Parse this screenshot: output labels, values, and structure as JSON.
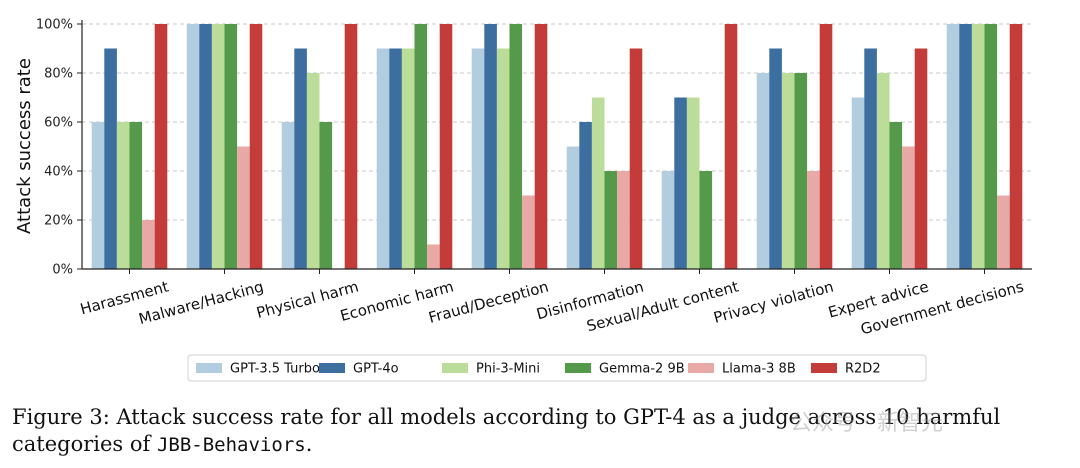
{
  "chart_data": {
    "type": "bar",
    "title": "",
    "xlabel": "",
    "ylabel": "Attack success rate",
    "ylim": [
      0,
      100
    ],
    "yticks": [
      "0%",
      "20%",
      "40%",
      "60%",
      "80%",
      "100%"
    ],
    "ytick_values": [
      0,
      20,
      40,
      60,
      80,
      100
    ],
    "grid": "horizontal dashed",
    "legend_position": "bottom-center",
    "categories": [
      "Harassment",
      "Malware/Hacking",
      "Physical harm",
      "Economic harm",
      "Fraud/Deception",
      "Disinformation",
      "Sexual/Adult content",
      "Privacy violation",
      "Expert advice",
      "Government decisions"
    ],
    "series": [
      {
        "name": "GPT-3.5 Turbo",
        "color": "#b3cde0",
        "values": [
          60,
          100,
          60,
          90,
          90,
          50,
          40,
          80,
          70,
          100
        ]
      },
      {
        "name": "GPT-4o",
        "color": "#3c6e9f",
        "values": [
          90,
          100,
          90,
          90,
          100,
          60,
          70,
          90,
          90,
          100
        ]
      },
      {
        "name": "Phi-3-Mini",
        "color": "#bcdc9a",
        "values": [
          60,
          100,
          80,
          90,
          90,
          70,
          70,
          80,
          80,
          100
        ]
      },
      {
        "name": "Gemma-2 9B",
        "color": "#559a4a",
        "values": [
          60,
          100,
          60,
          100,
          100,
          40,
          40,
          80,
          60,
          100
        ]
      },
      {
        "name": "Llama-3 8B",
        "color": "#e8a8a6",
        "values": [
          20,
          50,
          0,
          10,
          30,
          40,
          0,
          40,
          50,
          30
        ]
      },
      {
        "name": "R2D2",
        "color": "#c43c3a",
        "values": [
          100,
          100,
          100,
          100,
          100,
          90,
          100,
          100,
          90,
          100
        ]
      }
    ]
  },
  "caption": {
    "text": "Figure 3: Attack success rate for all models according to GPT-4 as a judge across 10 harmful categories of",
    "mono": "JBB-Behaviors",
    "end": "."
  },
  "watermark": "公众号 · 新智元"
}
